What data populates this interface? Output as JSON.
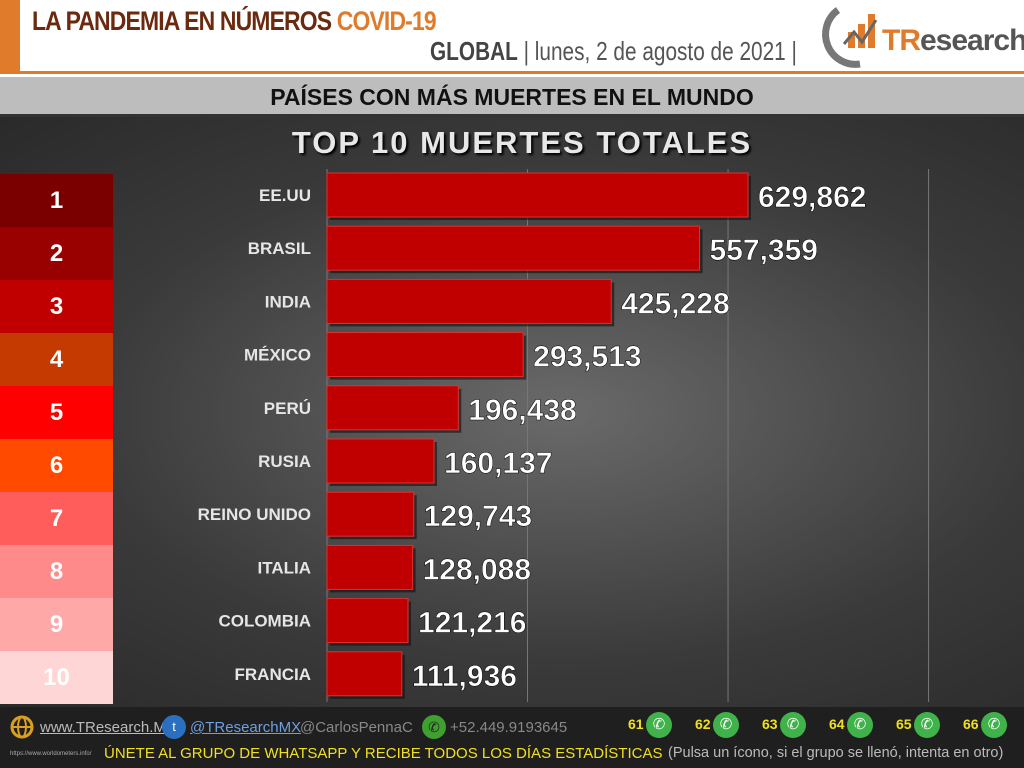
{
  "header": {
    "title": "LA PANDEMIA EN NÚMEROS",
    "title_accent": "COVID-19",
    "scope": "GLOBAL",
    "date": "| lunes, 2 de agosto de 2021 |",
    "logo_a": "TR",
    "logo_b": "esearch"
  },
  "subtitle": "PAÍSES CON MÁS MUERTES EN EL MUNDO",
  "ranks": [
    "1",
    "2",
    "3",
    "4",
    "5",
    "6",
    "7",
    "8",
    "9",
    "10"
  ],
  "rank_colors": [
    "#7a0000",
    "#990000",
    "#c00000",
    "#c43a00",
    "#ff0000",
    "#ff4a00",
    "#ff5c5c",
    "#ff8a8a",
    "#ffa8a8",
    "#ffd6d6"
  ],
  "chart_data": {
    "type": "bar",
    "orientation": "horizontal",
    "title": "TOP 10 MUERTES TOTALES",
    "categories": [
      "EE.UU",
      "BRASIL",
      "INDIA",
      "MÉXICO",
      "PERÚ",
      "RUSIA",
      "REINO UNIDO",
      "ITALIA",
      "COLOMBIA",
      "FRANCIA"
    ],
    "values": [
      629862,
      557359,
      425228,
      293513,
      196438,
      160137,
      129743,
      128088,
      121216,
      111936
    ],
    "labels": [
      "629,862",
      "557,359",
      "425,228",
      "293,513",
      "196,438",
      "160,137",
      "129,743",
      "128,088",
      "121,216",
      "111,936"
    ],
    "xlim": [
      0,
      900000
    ],
    "grid": true,
    "bar_color": "#c00000"
  },
  "footer": {
    "web": "www.TResearch.Mx",
    "twitter": "@TResearchMX",
    "personal": "@CarlosPennaC",
    "phone": "+52.449.9193645",
    "source": "https://www.worldometers.info/",
    "groups": [
      "61",
      "62",
      "63",
      "64",
      "65",
      "66"
    ],
    "cta": "ÚNETE AL GRUPO DE WHATSAPP Y RECIBE TODOS LOS DÍAS ESTADÍSTICAS",
    "cta_note": "(Pulsa un ícono, si el grupo se llenó, intenta en otro)"
  }
}
